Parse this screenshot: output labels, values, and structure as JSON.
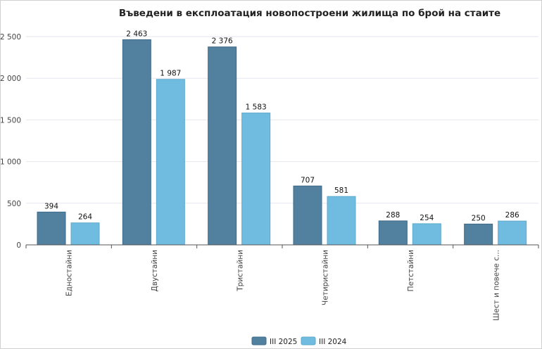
{
  "chart_data": {
    "type": "bar",
    "title": "Въведени в експлоатация новопостроени жилища по брой на стаите",
    "xlabel": "",
    "ylabel": "",
    "ylim": [
      0,
      2500
    ],
    "yticks": [
      0,
      500,
      1000,
      1500,
      2000,
      2500
    ],
    "ytick_labels": [
      "0",
      "500",
      "1 000",
      "1 500",
      "2 000",
      "2 500"
    ],
    "grid": true,
    "legend_position": "bottom-center",
    "categories": [
      "Едностайни",
      "Двустайни",
      "Тристайни",
      "Четиристайни",
      "Петстайни",
      "Шест и повече с..."
    ],
    "series": [
      {
        "name": "III 2025",
        "color": "#52809f",
        "values": [
          394,
          2463,
          2376,
          707,
          288,
          250
        ],
        "labels": [
          "394",
          "2 463",
          "2 376",
          "707",
          "288",
          "250"
        ]
      },
      {
        "name": "III 2024",
        "color": "#70bce0",
        "values": [
          264,
          1987,
          1583,
          581,
          254,
          286
        ],
        "labels": [
          "264",
          "1 987",
          "1 583",
          "581",
          "254",
          "286"
        ]
      }
    ]
  }
}
